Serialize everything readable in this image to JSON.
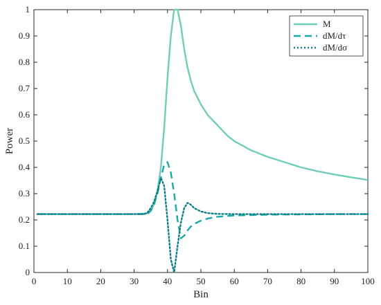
{
  "chart_data": {
    "type": "line",
    "title": "",
    "xlabel": "Bin",
    "ylabel": "Power",
    "xlim": [
      0,
      100
    ],
    "ylim": [
      0,
      1
    ],
    "xticks": [
      0,
      10,
      20,
      30,
      40,
      50,
      60,
      70,
      80,
      90,
      100
    ],
    "yticks": [
      0,
      0.1,
      0.2,
      0.3,
      0.4,
      0.5,
      0.6,
      0.7,
      0.8,
      0.9,
      1
    ],
    "grid": false,
    "legend_position": "top-right",
    "series": [
      {
        "name": "M",
        "style": "solid",
        "color": "#6fcdb9",
        "x": [
          1,
          30,
          34,
          35,
          36,
          37,
          38,
          39,
          40,
          41,
          42,
          43,
          44,
          45,
          46,
          47,
          48,
          50,
          52,
          55,
          58,
          60,
          65,
          70,
          75,
          80,
          85,
          90,
          95,
          100
        ],
        "y": [
          0.222,
          0.222,
          0.225,
          0.235,
          0.26,
          0.31,
          0.4,
          0.55,
          0.74,
          0.9,
          1.0,
          1.0,
          0.94,
          0.85,
          0.78,
          0.73,
          0.69,
          0.64,
          0.6,
          0.56,
          0.52,
          0.5,
          0.465,
          0.44,
          0.42,
          0.4,
          0.385,
          0.373,
          0.362,
          0.352
        ]
      },
      {
        "name": "dM/dτ",
        "style": "dashed",
        "color": "#1aa7a7",
        "x": [
          1,
          34,
          35,
          36,
          37,
          38,
          39,
          40,
          41,
          42,
          43,
          44,
          45,
          46,
          47,
          48,
          50,
          52,
          55,
          60,
          70,
          80,
          90,
          100
        ],
        "y": [
          0.222,
          0.222,
          0.235,
          0.26,
          0.3,
          0.36,
          0.41,
          0.42,
          0.38,
          0.3,
          0.2,
          0.13,
          0.14,
          0.16,
          0.175,
          0.185,
          0.197,
          0.205,
          0.212,
          0.217,
          0.22,
          0.221,
          0.222,
          0.222
        ]
      },
      {
        "name": "dM/dσ",
        "style": "dotted",
        "color": "#0e7f86",
        "x": [
          1,
          33,
          34,
          35,
          36,
          37,
          38,
          39,
          40,
          41,
          42,
          43,
          44,
          45,
          46,
          47,
          48,
          50,
          52,
          55,
          60,
          100
        ],
        "y": [
          0.222,
          0.222,
          0.228,
          0.245,
          0.27,
          0.31,
          0.36,
          0.33,
          0.2,
          0.05,
          0.0,
          0.1,
          0.19,
          0.245,
          0.265,
          0.258,
          0.245,
          0.232,
          0.226,
          0.223,
          0.222,
          0.222
        ]
      }
    ]
  }
}
